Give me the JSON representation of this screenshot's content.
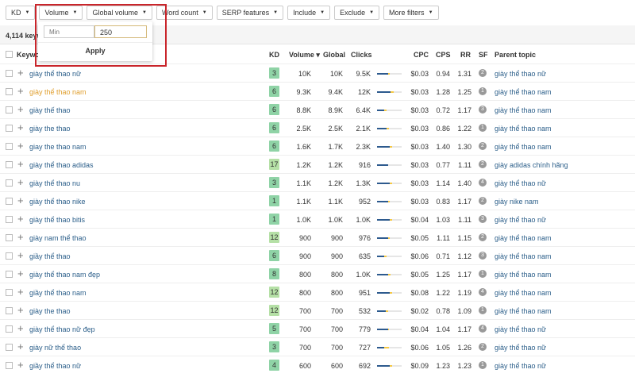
{
  "filters": [
    {
      "label": "KD"
    },
    {
      "label": "Volume"
    },
    {
      "label": "Global volume"
    },
    {
      "label": "Word count"
    },
    {
      "label": "SERP features"
    },
    {
      "label": "Include"
    },
    {
      "label": "Exclude"
    },
    {
      "label": "More filters"
    }
  ],
  "summary": {
    "count": "4,114 keywords"
  },
  "volume_popup": {
    "min_placeholder": "Min",
    "max_value": "250",
    "apply_label": "Apply"
  },
  "columns": {
    "keyword": "Keyword",
    "kd": "KD",
    "volume": "Volume ▾",
    "global": "Global",
    "clicks": "Clicks",
    "cpc": "CPC",
    "cps": "CPS",
    "rr": "RR",
    "sf": "SF",
    "parent": "Parent topic"
  },
  "colors": {
    "kd_low": "#8fd3a6",
    "kd_mid": "#b5e0a6",
    "link": "#2c5f8a",
    "active_keyword": "#e0a030",
    "highlight": "#c9252b"
  },
  "rows": [
    {
      "keyword": "giày thể thao nữ",
      "kd": "3",
      "volume": "10K",
      "global": "10K",
      "clicks": "9.5K",
      "cpc": "$0.03",
      "cps": "0.94",
      "rr": "1.31",
      "sf": "2",
      "parent": "giày thể thao nữ",
      "organic": 0.45,
      "paid": 0.08
    },
    {
      "keyword": "giày thể thao nam",
      "kd": "6",
      "volume": "9.3K",
      "global": "9.4K",
      "clicks": "12K",
      "cpc": "$0.03",
      "cps": "1.28",
      "rr": "1.25",
      "sf": "1",
      "parent": "giày thể thao nam",
      "organic": 0.55,
      "paid": 0.12,
      "active": true
    },
    {
      "keyword": "giày thế thao",
      "kd": "6",
      "volume": "8.8K",
      "global": "8.9K",
      "clicks": "6.4K",
      "cpc": "$0.03",
      "cps": "0.72",
      "rr": "1.17",
      "sf": "3",
      "parent": "giày thể thao nam",
      "organic": 0.3,
      "paid": 0.1
    },
    {
      "keyword": "giày the thao",
      "kd": "6",
      "volume": "2.5K",
      "global": "2.5K",
      "clicks": "2.1K",
      "cpc": "$0.03",
      "cps": "0.86",
      "rr": "1.22",
      "sf": "1",
      "parent": "giày thể thao nam",
      "organic": 0.4,
      "paid": 0.08
    },
    {
      "keyword": "giay the thao nam",
      "kd": "6",
      "volume": "1.6K",
      "global": "1.7K",
      "clicks": "2.3K",
      "cpc": "$0.03",
      "cps": "1.40",
      "rr": "1.30",
      "sf": "2",
      "parent": "giày thể thao nam",
      "organic": 0.5,
      "paid": 0.12
    },
    {
      "keyword": "giày thể thao adidas",
      "kd": "17",
      "volume": "1.2K",
      "global": "1.2K",
      "clicks": "916",
      "cpc": "$0.03",
      "cps": "0.77",
      "rr": "1.11",
      "sf": "2",
      "parent": "giày adidas chính hãng",
      "organic": 0.45,
      "paid": 0.0
    },
    {
      "keyword": "giày thể thao nu",
      "kd": "3",
      "volume": "1.1K",
      "global": "1.2K",
      "clicks": "1.3K",
      "cpc": "$0.03",
      "cps": "1.14",
      "rr": "1.40",
      "sf": "4",
      "parent": "giày thể thao nữ",
      "organic": 0.5,
      "paid": 0.1
    },
    {
      "keyword": "giày thể thao nike",
      "kd": "1",
      "volume": "1.1K",
      "global": "1.1K",
      "clicks": "952",
      "cpc": "$0.03",
      "cps": "0.83",
      "rr": "1.17",
      "sf": "2",
      "parent": "giày nike nam",
      "organic": 0.45,
      "paid": 0.08
    },
    {
      "keyword": "giày thể thao bitis",
      "kd": "1",
      "volume": "1.0K",
      "global": "1.0K",
      "clicks": "1.0K",
      "cpc": "$0.04",
      "cps": "1.03",
      "rr": "1.11",
      "sf": "3",
      "parent": "giày thể thao nữ",
      "organic": 0.5,
      "paid": 0.12
    },
    {
      "keyword": "giày nam thể thao",
      "kd": "12",
      "volume": "900",
      "global": "900",
      "clicks": "976",
      "cpc": "$0.05",
      "cps": "1.11",
      "rr": "1.15",
      "sf": "2",
      "parent": "giày thể thao nam",
      "organic": 0.45,
      "paid": 0.08
    },
    {
      "keyword": "giầy thể thao",
      "kd": "6",
      "volume": "900",
      "global": "900",
      "clicks": "635",
      "cpc": "$0.06",
      "cps": "0.71",
      "rr": "1.12",
      "sf": "3",
      "parent": "giày thể thao nam",
      "organic": 0.3,
      "paid": 0.1
    },
    {
      "keyword": "giày thể thao nam đẹp",
      "kd": "8",
      "volume": "800",
      "global": "800",
      "clicks": "1.0K",
      "cpc": "$0.05",
      "cps": "1.25",
      "rr": "1.17",
      "sf": "1",
      "parent": "giày thể thao nam",
      "organic": 0.45,
      "paid": 0.1
    },
    {
      "keyword": "giầy thể thao nam",
      "kd": "12",
      "volume": "800",
      "global": "800",
      "clicks": "951",
      "cpc": "$0.08",
      "cps": "1.22",
      "rr": "1.19",
      "sf": "4",
      "parent": "giày thể thao nam",
      "organic": 0.5,
      "paid": 0.1
    },
    {
      "keyword": "giày the thao",
      "kd": "12",
      "volume": "700",
      "global": "700",
      "clicks": "532",
      "cpc": "$0.02",
      "cps": "0.78",
      "rr": "1.09",
      "sf": "1",
      "parent": "giày thể thao nam",
      "organic": 0.35,
      "paid": 0.1
    },
    {
      "keyword": "giày thể thao nữ đẹp",
      "kd": "5",
      "volume": "700",
      "global": "700",
      "clicks": "779",
      "cpc": "$0.04",
      "cps": "1.04",
      "rr": "1.17",
      "sf": "4",
      "parent": "giày thể thao nữ",
      "organic": 0.45,
      "paid": 0.05
    },
    {
      "keyword": "giày nữ thể thao",
      "kd": "3",
      "volume": "700",
      "global": "700",
      "clicks": "727",
      "cpc": "$0.06",
      "cps": "1.05",
      "rr": "1.26",
      "sf": "2",
      "parent": "giày thể thao nữ",
      "organic": 0.3,
      "paid": 0.2
    },
    {
      "keyword": "giầy thể thao nữ",
      "kd": "4",
      "volume": "600",
      "global": "600",
      "clicks": "692",
      "cpc": "$0.09",
      "cps": "1.23",
      "rr": "1.23",
      "sf": "1",
      "parent": "giày thể thao nữ",
      "organic": 0.5,
      "paid": 0.1
    }
  ]
}
